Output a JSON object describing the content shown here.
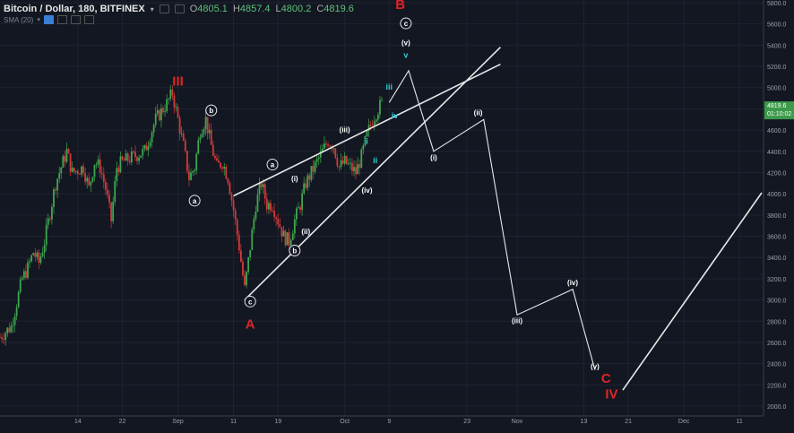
{
  "header": {
    "symbol": "Bitcoin / Dollar, 180, BITFINEX",
    "open_label": "O",
    "open": "4805.1",
    "high_label": "H",
    "high": "4857.4",
    "low_label": "L",
    "low": "4800.2",
    "close_label": "C",
    "close": "4819.6",
    "indicator": "SMA (20)"
  },
  "price_tag": {
    "price": "4819.6",
    "countdown": "01:10:02"
  },
  "colors": {
    "background": "#131722",
    "up_candle": "#3fa64f",
    "down_candle": "#d13b3b",
    "wave_label_red": "#e02424",
    "wave_label_cyan": "#2ed0d8",
    "drawing": "#e8e8e8",
    "price_tag_bg": "#3c9a4a"
  },
  "chart_data": {
    "type": "candlestick",
    "title": "Bitcoin / Dollar, 180, BITFINEX",
    "xlabel": "",
    "ylabel": "",
    "ylim": [
      1900,
      5800
    ],
    "y_ticks": [
      "5800.0",
      "5600.0",
      "5400.0",
      "5200.0",
      "5000.0",
      "4800.0",
      "4600.0",
      "4400.0",
      "4200.0",
      "4000.0",
      "3800.0",
      "3600.0",
      "3400.0",
      "3200.0",
      "3000.0",
      "2800.0",
      "2600.0",
      "2400.0",
      "2200.0",
      "2000.0"
    ],
    "x_ticks": [
      {
        "label": "14",
        "day": 14
      },
      {
        "label": "22",
        "day": 22
      },
      {
        "label": "Sep",
        "day": 32
      },
      {
        "label": "11",
        "day": 42
      },
      {
        "label": "19",
        "day": 50
      },
      {
        "label": "Oct",
        "day": 62
      },
      {
        "label": "9",
        "day": 70
      },
      {
        "label": "23",
        "day": 84
      },
      {
        "label": "Nov",
        "day": 93
      },
      {
        "label": "13",
        "day": 105
      },
      {
        "label": "21",
        "day": 113
      },
      {
        "label": "Dec",
        "day": 123
      },
      {
        "label": "11",
        "day": 133
      }
    ],
    "price_path": [
      [
        0,
        2650
      ],
      [
        2,
        2750
      ],
      [
        4,
        3200
      ],
      [
        5,
        3300
      ],
      [
        6,
        3450
      ],
      [
        7,
        3350
      ],
      [
        8,
        3550
      ],
      [
        10,
        4100
      ],
      [
        12,
        4400
      ],
      [
        13,
        4200
      ],
      [
        15,
        4250
      ],
      [
        16,
        4050
      ],
      [
        17,
        4300
      ],
      [
        18,
        4250
      ],
      [
        19,
        4050
      ],
      [
        20,
        3750
      ],
      [
        21,
        4250
      ],
      [
        22,
        4300
      ],
      [
        24,
        4350
      ],
      [
        26,
        4400
      ],
      [
        28,
        4700
      ],
      [
        30,
        4850
      ],
      [
        31,
        4950
      ],
      [
        32,
        4700
      ],
      [
        33,
        4450
      ],
      [
        34,
        4150
      ],
      [
        35,
        4250
      ],
      [
        36,
        4600
      ],
      [
        37,
        4700
      ],
      [
        38,
        4450
      ],
      [
        39,
        4250
      ],
      [
        40,
        4300
      ],
      [
        41,
        4150
      ],
      [
        42,
        3850
      ],
      [
        43,
        3500
      ],
      [
        44,
        3100
      ],
      [
        45,
        3500
      ],
      [
        46,
        3900
      ],
      [
        47,
        4100
      ],
      [
        48,
        3900
      ],
      [
        49,
        3900
      ],
      [
        50,
        3750
      ],
      [
        51,
        3600
      ],
      [
        52,
        3550
      ],
      [
        53,
        3750
      ],
      [
        54,
        3900
      ],
      [
        55,
        4100
      ],
      [
        56,
        4200
      ],
      [
        57,
        4300
      ],
      [
        58,
        4400
      ],
      [
        59,
        4500
      ],
      [
        60,
        4450
      ],
      [
        61,
        4250
      ],
      [
        62,
        4300
      ],
      [
        63,
        4250
      ],
      [
        64,
        4200
      ],
      [
        65,
        4350
      ],
      [
        66,
        4550
      ],
      [
        67,
        4700
      ],
      [
        68,
        4800
      ],
      [
        69,
        4880
      ]
    ],
    "wave_labels": [
      {
        "text": "III",
        "x": 32,
        "y": 5020,
        "style": "red-roman"
      },
      {
        "text": "A",
        "x": 45,
        "y": 2730,
        "style": "red-roman"
      },
      {
        "text": "B",
        "x": 72,
        "y": 5740,
        "style": "red-roman"
      },
      {
        "text": "C",
        "x": 109,
        "y": 2220,
        "style": "red-roman"
      },
      {
        "text": "IV",
        "x": 110,
        "y": 2070,
        "style": "red-roman"
      },
      {
        "text": "a",
        "x": 35,
        "y": 3910,
        "style": "circle"
      },
      {
        "text": "b",
        "x": 38,
        "y": 4760,
        "style": "circle"
      },
      {
        "text": "c",
        "x": 45,
        "y": 2960,
        "style": "circle"
      },
      {
        "text": "a",
        "x": 49,
        "y": 4250,
        "style": "circle"
      },
      {
        "text": "b",
        "x": 53,
        "y": 3440,
        "style": "circle"
      },
      {
        "text": "c",
        "x": 73,
        "y": 5580,
        "style": "circle"
      },
      {
        "text": "(i)",
        "x": 53,
        "y": 4120,
        "style": "paren"
      },
      {
        "text": "(ii)",
        "x": 55,
        "y": 3620,
        "style": "paren"
      },
      {
        "text": "(iii)",
        "x": 62,
        "y": 4580,
        "style": "paren"
      },
      {
        "text": "(iv)",
        "x": 66,
        "y": 4010,
        "style": "paren"
      },
      {
        "text": "(v)",
        "x": 73,
        "y": 5400,
        "style": "paren"
      },
      {
        "text": "i",
        "x": 66,
        "y": 4470,
        "style": "cyan"
      },
      {
        "text": "ii",
        "x": 67.5,
        "y": 4290,
        "style": "cyan"
      },
      {
        "text": "iii",
        "x": 70,
        "y": 4980,
        "style": "cyan"
      },
      {
        "text": "iv",
        "x": 71,
        "y": 4710,
        "style": "cyan"
      },
      {
        "text": "v",
        "x": 73,
        "y": 5280,
        "style": "cyan"
      },
      {
        "text": "(i)",
        "x": 78,
        "y": 4320,
        "style": "paren"
      },
      {
        "text": "(ii)",
        "x": 86,
        "y": 4740,
        "style": "paren"
      },
      {
        "text": "(iii)",
        "x": 93,
        "y": 2780,
        "style": "paren"
      },
      {
        "text": "(iv)",
        "x": 103,
        "y": 3140,
        "style": "paren"
      },
      {
        "text": "(v)",
        "x": 107,
        "y": 2350,
        "style": "paren"
      }
    ],
    "projection_path": [
      [
        70,
        4860
      ],
      [
        73.5,
        5160
      ],
      [
        78,
        4400
      ],
      [
        87,
        4700
      ],
      [
        93,
        2860
      ],
      [
        103,
        3100
      ],
      [
        107,
        2340
      ]
    ],
    "final_path": [
      [
        112,
        2150
      ],
      [
        137,
        4010
      ]
    ],
    "channel_lines": [
      [
        [
          42,
          3980
        ],
        [
          90,
          5220
        ]
      ],
      [
        [
          44,
          3000
        ],
        [
          90,
          5380
        ]
      ]
    ],
    "price_tag_value": 4819.6
  }
}
